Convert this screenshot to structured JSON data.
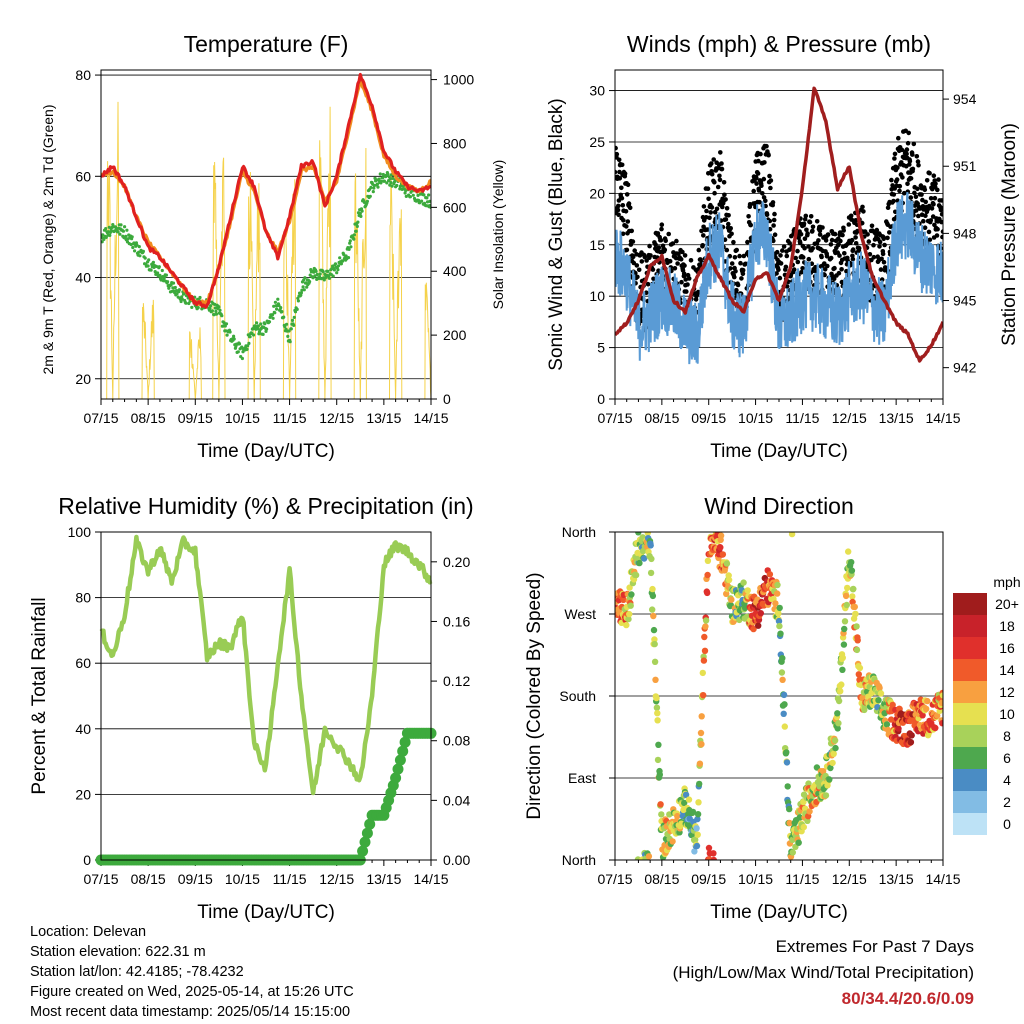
{
  "info": {
    "location": "Location: Delevan",
    "elevation": "Station elevation: 622.31 m",
    "latlon": "Station lat/lon: 42.4185; -78.4232",
    "created": "Figure created on Wed, 2025-05-14, at 15:26 UTC",
    "recent": "Most recent data timestamp: 2025/05/14 15:15:00"
  },
  "extremes": {
    "title": "Extremes For Past 7 Days",
    "subtitle": "(High/Low/Max Wind/Total Precipitation)",
    "values": "80/34.4/20.6/0.09"
  },
  "time_ticks": [
    "07/15",
    "08/15",
    "09/15",
    "10/15",
    "11/15",
    "12/15",
    "13/15",
    "14/15"
  ],
  "colors": {
    "temp2m": "#e02020",
    "temp9m": "#f08c1e",
    "dewpoint": "#3caa3c",
    "solar": "#f5d24b",
    "gust": "#000000",
    "wind": "#5a9bd5",
    "pressure": "#a01e1e",
    "rh": "#99cc55",
    "precip": "#3daa3d"
  },
  "chart_data": [
    {
      "type": "line",
      "title": "Temperature (F)",
      "xlabel": "Time (Day/UTC)",
      "ylabel": "2m & 9m T (Red, Orange) & 2m Td (Green)",
      "y2label": "Solar Insolation (Yellow)",
      "ylim": [
        16,
        81
      ],
      "y2lim": [
        0,
        1030
      ],
      "yticks": [
        20,
        40,
        60,
        80
      ],
      "y2ticks": [
        0,
        200,
        400,
        600,
        800,
        1000
      ],
      "grid": true,
      "x": [
        0,
        0.25,
        0.5,
        0.75,
        1,
        1.25,
        1.5,
        1.75,
        2,
        2.25,
        2.5,
        2.75,
        3,
        3.25,
        3.5,
        3.75,
        4,
        4.25,
        4.5,
        4.75,
        5,
        5.25,
        5.5,
        5.75,
        6,
        6.25,
        6.5,
        6.75,
        7
      ],
      "series": [
        {
          "values": [
            60,
            62,
            58,
            52,
            46,
            44,
            41,
            38,
            35,
            34.4,
            42,
            52,
            62,
            58,
            49,
            44,
            52,
            62,
            63,
            54,
            60,
            70,
            80,
            74,
            65,
            61,
            58,
            57,
            58
          ]
        },
        {
          "values": [
            60,
            61,
            58,
            52,
            47,
            44,
            41,
            38,
            35,
            35,
            42,
            51,
            61,
            57,
            49,
            45,
            51,
            61,
            62,
            55,
            59,
            69,
            79,
            73,
            64,
            60,
            58,
            57,
            59
          ]
        },
        {
          "values": [
            48,
            50,
            49,
            46,
            43,
            41,
            38,
            36,
            35,
            35,
            33,
            28,
            25,
            30,
            30,
            35,
            28,
            38,
            41,
            40,
            42,
            45,
            53,
            58,
            60,
            59,
            57,
            56,
            55
          ]
        },
        {
          "values": [
            0,
            960,
            0,
            0,
            350,
            0,
            0,
            0,
            250,
            0,
            900,
            0,
            0,
            850,
            0,
            0,
            850,
            0,
            0,
            960,
            0,
            0,
            830,
            0,
            0,
            780,
            0,
            0,
            400
          ]
        }
      ]
    },
    {
      "type": "scatter",
      "title": "Winds (mph) & Pressure (mb)",
      "xlabel": "Time (Day/UTC)",
      "ylabel": "Sonic Wind & Gust (Blue, Black)",
      "y2label": "Station Pressure (Maroon)",
      "ylim": [
        0,
        32
      ],
      "y2lim": [
        940.6,
        955.3
      ],
      "yticks": [
        0,
        5,
        10,
        15,
        20,
        25,
        30
      ],
      "y2ticks": [
        942,
        945,
        948,
        951,
        954
      ],
      "grid": true,
      "x": [
        0,
        0.25,
        0.5,
        0.75,
        1,
        1.25,
        1.5,
        1.75,
        2,
        2.25,
        2.5,
        2.75,
        3,
        3.25,
        3.5,
        3.75,
        4,
        4.25,
        4.5,
        4.75,
        5,
        5.25,
        5.5,
        5.75,
        6,
        6.25,
        6.5,
        6.75,
        7
      ],
      "series": [
        {
          "values": [
            22,
            18,
            10,
            11,
            14,
            12,
            10,
            9,
            19,
            20,
            12,
            10,
            20,
            21,
            10,
            12,
            14,
            14,
            13,
            12,
            14,
            15,
            13,
            12,
            21,
            23,
            19,
            18,
            17
          ]
        },
        {
          "values": [
            14,
            12,
            7,
            8,
            10,
            9,
            7,
            6,
            14,
            15,
            8,
            7,
            16,
            16,
            7,
            8,
            10,
            10,
            9,
            8,
            10,
            11,
            9,
            8,
            16,
            17,
            14,
            13,
            12
          ]
        },
        {
          "values": [
            943.5,
            944,
            945,
            946.5,
            947,
            945,
            944.5,
            946,
            947,
            946,
            945,
            944.5,
            946,
            946.2,
            945,
            946.5,
            950,
            954.5,
            953,
            950,
            951,
            948,
            946,
            945,
            944,
            943.5,
            942.3,
            943,
            944
          ]
        }
      ]
    },
    {
      "type": "line",
      "title": "Relative Humidity (%) & Precipitation (in)",
      "xlabel": "Time (Day/UTC)",
      "ylabel": "Percent & Total Rainfall",
      "ylim": [
        0,
        100
      ],
      "y2lim": [
        0,
        0.22
      ],
      "yticks": [
        0,
        20,
        40,
        60,
        80,
        100
      ],
      "y2ticks": [
        0.0,
        0.04,
        0.08,
        0.12,
        0.16,
        0.2
      ],
      "grid": true,
      "x": [
        0,
        0.25,
        0.5,
        0.75,
        1,
        1.25,
        1.5,
        1.75,
        2,
        2.25,
        2.5,
        2.75,
        3,
        3.25,
        3.5,
        3.75,
        4,
        4.25,
        4.5,
        4.75,
        5,
        5.25,
        5.5,
        5.75,
        6,
        6.25,
        6.5,
        6.75,
        7
      ],
      "series": [
        {
          "values": [
            70,
            62,
            75,
            97,
            88,
            95,
            85,
            97,
            94,
            62,
            66,
            65,
            75,
            35,
            28,
            60,
            88,
            50,
            20,
            40,
            35,
            30,
            24,
            50,
            90,
            96,
            94,
            90,
            85
          ]
        },
        {
          "values": [
            0,
            0,
            0,
            0,
            0,
            0,
            0,
            0,
            0,
            0,
            0,
            0,
            0,
            0,
            0,
            0,
            0,
            0,
            0,
            0,
            0,
            0,
            0,
            0.03,
            0.03,
            0.055,
            0.085,
            0.085,
            0.085
          ]
        }
      ]
    },
    {
      "type": "scatter",
      "title": "Wind Direction",
      "xlabel": "Time (Day/UTC)",
      "ylabel": "Direction (Colored By Speed)",
      "ylim": [
        0,
        360
      ],
      "ytick_labels": [
        "North",
        "East",
        "South",
        "West",
        "North"
      ],
      "grid": true,
      "colorbar": {
        "unit": "mph",
        "labels": [
          "20+",
          "18",
          "16",
          "14",
          "12",
          "10",
          "8",
          "6",
          "4",
          "2",
          "0"
        ],
        "colors": [
          "#a01c1c",
          "#c8222a",
          "#e0302c",
          "#f05a2a",
          "#f8a040",
          "#e6e050",
          "#a8d25a",
          "#4ea84e",
          "#4a8cc4",
          "#82bce4",
          "#bde2f6"
        ]
      },
      "x": [
        0,
        0.25,
        0.5,
        0.75,
        1,
        1.25,
        1.5,
        1.75,
        2,
        2.25,
        2.5,
        2.75,
        3,
        3.25,
        3.5,
        3.75,
        4,
        4.25,
        4.5,
        4.75,
        5,
        5.25,
        5.5,
        5.75,
        6,
        6.25,
        6.5,
        6.75,
        7
      ],
      "series": [
        {
          "values": [
            290,
            270,
            345,
            350,
            20,
            40,
            60,
            20,
            355,
            340,
            280,
            285,
            270,
            300,
            282,
            6,
            50,
            80,
            90,
            150,
            340,
            180,
            185,
            160,
            150,
            145,
            160,
            155,
            170
          ]
        }
      ]
    }
  ]
}
